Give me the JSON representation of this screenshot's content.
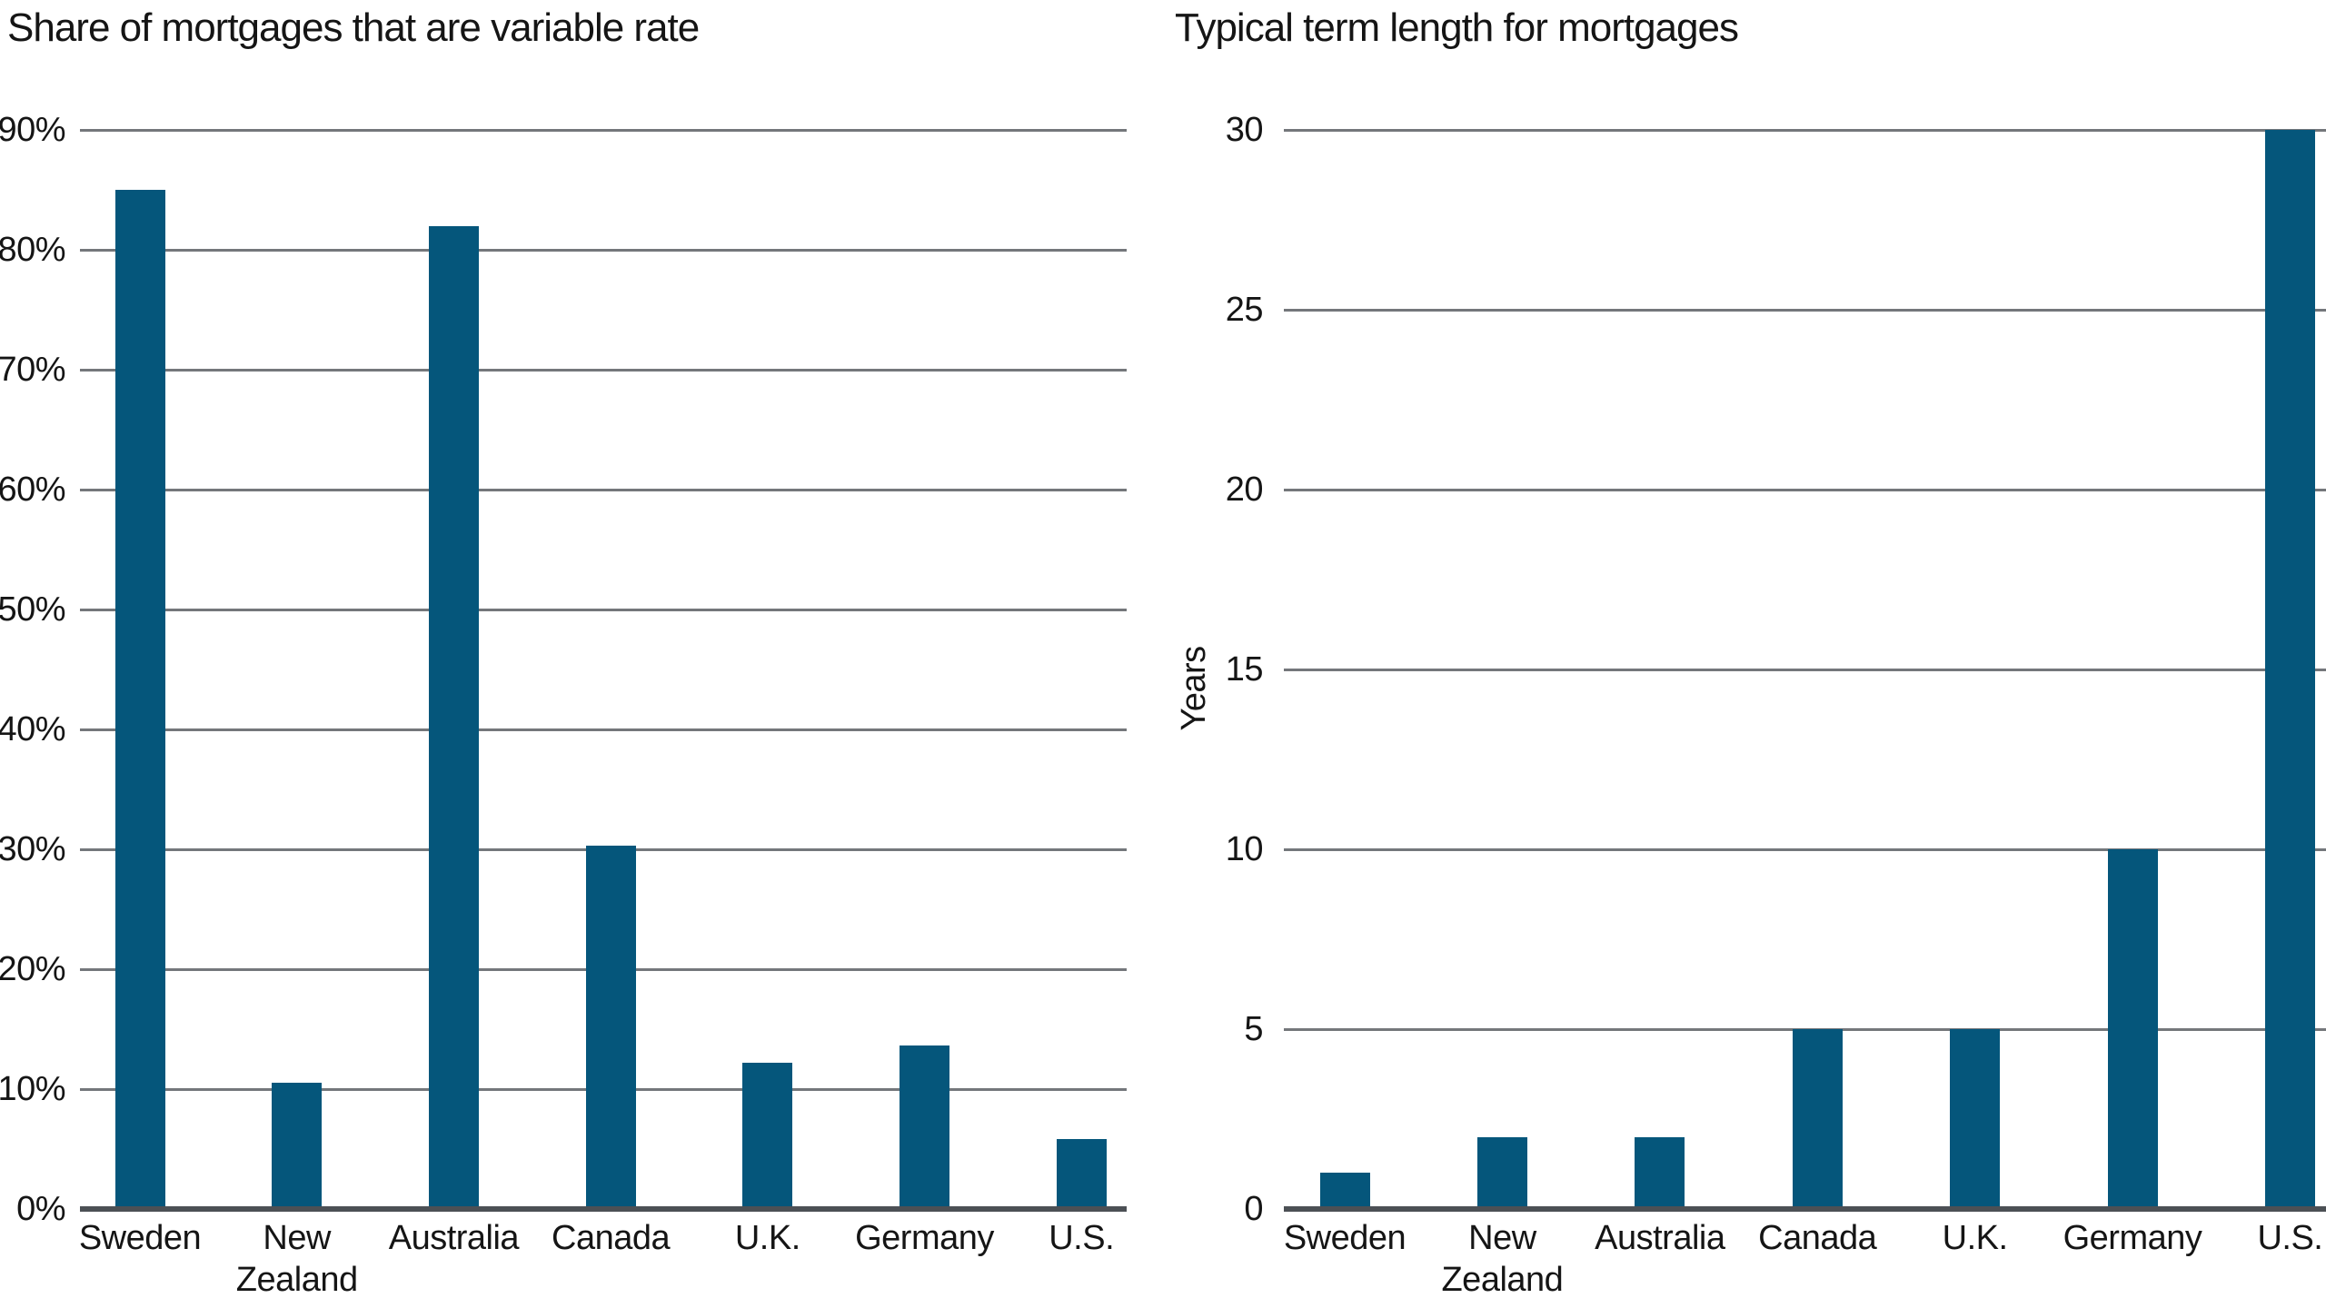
{
  "figure": {
    "background": "#ffffff"
  },
  "colors": {
    "bar": "#05567b",
    "gridline": "#74777b",
    "baseline": "#4c5055",
    "text": "#151515"
  },
  "chart_data": [
    {
      "type": "bar",
      "title": "Share of mortgages that are variable rate",
      "categories": [
        "Sweden",
        "New Zealand",
        "Australia",
        "Canada",
        "U.K.",
        "Germany",
        "U.S."
      ],
      "values": [
        85,
        10.5,
        82,
        30.3,
        12.2,
        13.6,
        5.8
      ],
      "xlabel": "",
      "ylabel": "",
      "ylim": [
        0,
        90
      ],
      "ytick_step": 10,
      "ytick_suffix": "%",
      "grid": true,
      "legend": "none"
    },
    {
      "type": "bar",
      "title": "Typical term length for mortgages",
      "categories": [
        "Sweden",
        "New Zealand",
        "Australia",
        "Canada",
        "U.K.",
        "Germany",
        "U.S."
      ],
      "values": [
        1,
        2,
        2,
        5,
        5,
        10,
        30
      ],
      "xlabel": "",
      "ylabel": "Years",
      "ylim": [
        0,
        30
      ],
      "ytick_step": 5,
      "ytick_suffix": "",
      "grid": true,
      "legend": "none"
    }
  ]
}
